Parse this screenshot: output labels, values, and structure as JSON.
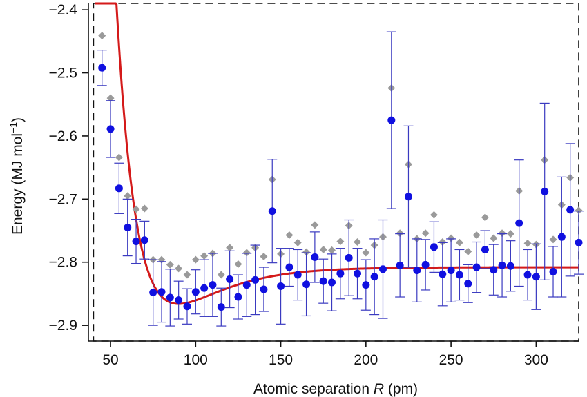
{
  "chart_data": {
    "type": "scatter",
    "title": "",
    "xlabel": "Atomic separation",
    "xlabel_symbol": "R",
    "xlabel_unit": "(pm)",
    "ylabel": "Energy (MJ mol",
    "ylabel_exp": "−1",
    "ylabel_close": ")",
    "xlim": [
      37,
      325
    ],
    "ylim": [
      -2.925,
      -2.39
    ],
    "x_ticks": [
      50,
      100,
      150,
      200,
      250,
      300
    ],
    "x_tick_labels": [
      "50",
      "100",
      "150",
      "200",
      "250",
      "300"
    ],
    "y_ticks": [
      -2.4,
      -2.5,
      -2.6,
      -2.7,
      -2.8,
      -2.9
    ],
    "y_tick_labels": [
      "−2.4",
      "−2.5",
      "−2.6",
      "−2.7",
      "−2.8",
      "−2.9"
    ],
    "grid": false,
    "legend": "none",
    "dashed_box": {
      "x": [
        40,
        325
      ],
      "y": [
        -2.925,
        -2.39
      ]
    },
    "series": [
      {
        "marker": "circle",
        "color": "#1010e0",
        "errorbar_color": "#3a3ac0",
        "x": [
          45,
          50,
          55,
          60,
          65,
          70,
          75,
          80,
          85,
          90,
          95,
          100,
          105,
          110,
          115,
          120,
          125,
          130,
          135,
          140,
          145,
          150,
          155,
          160,
          165,
          170,
          175,
          180,
          185,
          190,
          195,
          200,
          205,
          210,
          215,
          220,
          225,
          230,
          235,
          240,
          245,
          250,
          255,
          260,
          265,
          270,
          275,
          280,
          285,
          290,
          295,
          300,
          305,
          310,
          315,
          320,
          325
        ],
        "y": [
          -2.492,
          -2.589,
          -2.683,
          -2.745,
          -2.767,
          -2.765,
          -2.848,
          -2.847,
          -2.856,
          -2.86,
          -2.87,
          -2.847,
          -2.841,
          -2.836,
          -2.871,
          -2.827,
          -2.855,
          -2.836,
          -2.828,
          -2.843,
          -2.719,
          -2.838,
          -2.808,
          -2.82,
          -2.835,
          -2.792,
          -2.83,
          -2.832,
          -2.818,
          -2.793,
          -2.818,
          -2.836,
          -2.823,
          -2.811,
          -2.575,
          -2.805,
          -2.696,
          -2.813,
          -2.804,
          -2.776,
          -2.819,
          -2.813,
          -2.82,
          -2.834,
          -2.808,
          -2.78,
          -2.812,
          -2.805,
          -2.806,
          -2.738,
          -2.82,
          -2.823,
          -2.688,
          -2.815,
          -2.76,
          -2.717,
          -2.769
        ],
        "err": [
          0.028,
          0.045,
          0.04,
          0.045,
          0.035,
          0.03,
          0.052,
          0.048,
          0.045,
          0.03,
          0.028,
          0.035,
          0.045,
          0.05,
          0.03,
          0.045,
          0.035,
          0.05,
          0.055,
          0.035,
          0.082,
          0.06,
          0.03,
          0.04,
          0.05,
          0.04,
          0.035,
          0.045,
          0.04,
          0.06,
          0.04,
          0.04,
          0.06,
          0.078,
          0.14,
          0.05,
          0.112,
          0.05,
          0.04,
          0.04,
          0.05,
          0.05,
          0.04,
          0.03,
          0.04,
          0.03,
          0.04,
          0.05,
          0.04,
          0.1,
          0.04,
          0.052,
          0.14,
          0.04,
          0.095,
          0.105,
          0.05
        ]
      },
      {
        "marker": "diamond",
        "color": "#9a9a9a",
        "x": [
          45,
          50,
          55,
          60,
          65,
          70,
          75,
          80,
          85,
          90,
          95,
          100,
          105,
          110,
          115,
          120,
          125,
          130,
          135,
          140,
          145,
          150,
          155,
          160,
          165,
          170,
          175,
          180,
          185,
          190,
          195,
          200,
          205,
          210,
          215,
          220,
          225,
          230,
          235,
          240,
          245,
          250,
          255,
          260,
          265,
          270,
          275,
          280,
          285,
          290,
          295,
          300,
          305,
          310,
          315,
          320,
          325
        ],
        "y": [
          -2.441,
          -2.54,
          -2.634,
          -2.695,
          -2.716,
          -2.715,
          -2.796,
          -2.796,
          -2.804,
          -2.81,
          -2.82,
          -2.796,
          -2.79,
          -2.786,
          -2.82,
          -2.777,
          -2.803,
          -2.785,
          -2.777,
          -2.791,
          -2.669,
          -2.787,
          -2.757,
          -2.769,
          -2.784,
          -2.741,
          -2.78,
          -2.781,
          -2.767,
          -2.742,
          -2.768,
          -2.785,
          -2.773,
          -2.76,
          -2.524,
          -2.754,
          -2.645,
          -2.763,
          -2.754,
          -2.725,
          -2.768,
          -2.762,
          -2.769,
          -2.783,
          -2.757,
          -2.729,
          -2.762,
          -2.754,
          -2.755,
          -2.687,
          -2.77,
          -2.772,
          -2.638,
          -2.764,
          -2.709,
          -2.666,
          -2.718
        ]
      },
      {
        "marker": "line",
        "color": "#d41a1a",
        "model": "morse",
        "De": 0.058,
        "Re": 90,
        "a": 0.037,
        "E_inf": -2.808,
        "x_start": 41,
        "x_end": 325
      }
    ]
  }
}
